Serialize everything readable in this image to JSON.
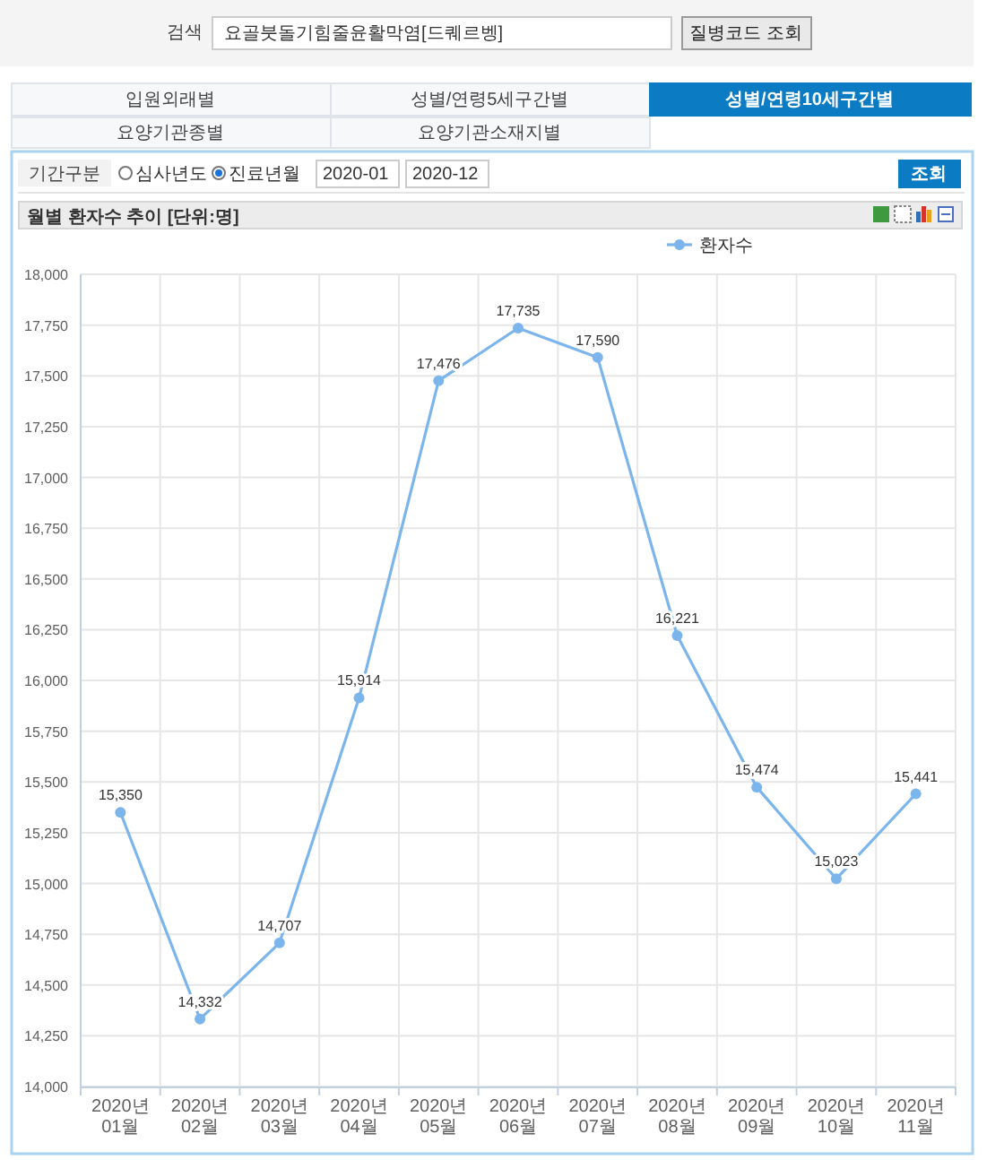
{
  "chart_data": {
    "type": "line",
    "title": "월별 환자수 추이 [단위:명]",
    "categories": [
      "2020년 01월",
      "2020년 02월",
      "2020년 03월",
      "2020년 04월",
      "2020년 05월",
      "2020년 06월",
      "2020년 07월",
      "2020년 08월",
      "2020년 09월",
      "2020년 10월",
      "2020년 11월"
    ],
    "series": [
      {
        "name": "환자수",
        "color": "#7cb5ec",
        "values": [
          15350,
          14332,
          14707,
          15914,
          17476,
          17735,
          17590,
          16221,
          15474,
          15023,
          15441
        ],
        "value_labels": [
          "15,350",
          "14,332",
          "14,707",
          "15,914",
          "17,476",
          "17,735",
          "17,590",
          "16,221",
          "15,474",
          "15,023",
          "15,441"
        ]
      }
    ],
    "ylim": [
      14000,
      18000
    ],
    "yticks": [
      {
        "value": 14000,
        "label": "14,000"
      },
      {
        "value": 14250,
        "label": "14,250"
      },
      {
        "value": 14500,
        "label": "14,500"
      },
      {
        "value": 14750,
        "label": "14,750"
      },
      {
        "value": 15000,
        "label": "15,000"
      },
      {
        "value": 15250,
        "label": "15,250"
      },
      {
        "value": 15500,
        "label": "15,500"
      },
      {
        "value": 15750,
        "label": "15,750"
      },
      {
        "value": 16000,
        "label": "16,000"
      },
      {
        "value": 16250,
        "label": "16,250"
      },
      {
        "value": 16500,
        "label": "16,500"
      },
      {
        "value": 16750,
        "label": "16,750"
      },
      {
        "value": 17000,
        "label": "17,000"
      },
      {
        "value": 17250,
        "label": "17,250"
      },
      {
        "value": 17500,
        "label": "17,500"
      },
      {
        "value": 17750,
        "label": "17,750"
      },
      {
        "value": 18000,
        "label": "18,000"
      }
    ],
    "grid": true,
    "legend": "top right",
    "marker": "circle",
    "line_style": "solid",
    "annotations": [
      "검색",
      "요골붓돌기힘줄윤활막염[드퀘르벵]",
      "질병코드 조회",
      "입원외래별",
      "성별/연령5세구간별",
      "성별/연령10세구간별",
      "요양기관종별",
      "요양기관소재지별",
      "기간구분",
      "심사년도",
      "진료년월",
      "2020-01",
      "2020-12",
      "조회"
    ]
  }
}
